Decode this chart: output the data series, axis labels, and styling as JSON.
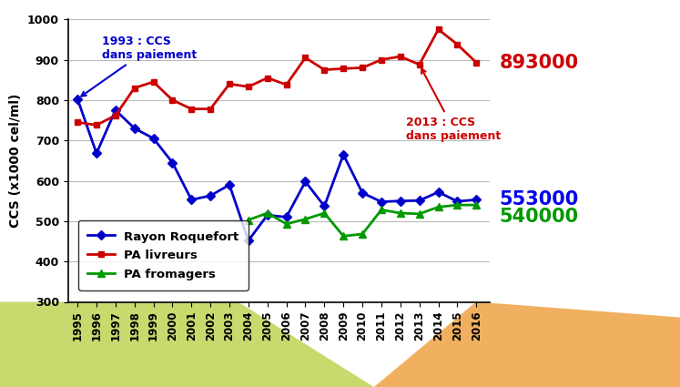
{
  "years": [
    1995,
    1996,
    1997,
    1998,
    1999,
    2000,
    2001,
    2002,
    2003,
    2004,
    2005,
    2006,
    2007,
    2008,
    2009,
    2010,
    2011,
    2012,
    2013,
    2014,
    2015,
    2016
  ],
  "rayon_roquefort": [
    803,
    668,
    775,
    730,
    705,
    645,
    553,
    563,
    590,
    452,
    515,
    510,
    598,
    537,
    665,
    570,
    548,
    550,
    551,
    572,
    549,
    553
  ],
  "pa_livreurs": [
    745,
    738,
    762,
    830,
    845,
    800,
    778,
    778,
    840,
    833,
    855,
    838,
    905,
    875,
    878,
    880,
    900,
    908,
    888,
    975,
    938,
    893
  ],
  "pa_fromagers": [
    null,
    null,
    null,
    null,
    null,
    null,
    null,
    null,
    null,
    503,
    520,
    493,
    505,
    520,
    463,
    468,
    528,
    520,
    518,
    535,
    540,
    540
  ],
  "colors": {
    "rayon_roquefort": "#0000cc",
    "pa_livreurs": "#cc0000",
    "pa_fromagers": "#009900"
  },
  "ylabel": "CCS (x1000 cel/ml)",
  "ylim": [
    300,
    1000
  ],
  "yticks": [
    300,
    400,
    500,
    600,
    700,
    800,
    900,
    1000
  ],
  "annotation_1993_text": "1993 : CCS\ndans paiement",
  "annotation_2013_text": "2013 : CCS\ndans paiement",
  "annotation_1993_color": "#0000cc",
  "annotation_2013_color": "#cc0000",
  "label_893_text": "893000",
  "label_553_text": "553000",
  "label_540_text": "540000",
  "label_893_color": "#cc0000",
  "label_553_color": "#0000ee",
  "label_540_color": "#009900",
  "legend_labels": [
    "Rayon Roquefort",
    "PA livreurs",
    "PA fromagers"
  ],
  "background_color": "#ffffff",
  "grid_color": "#bbbbbb",
  "bg_green": "#c8d96e",
  "bg_orange": "#f0b060"
}
